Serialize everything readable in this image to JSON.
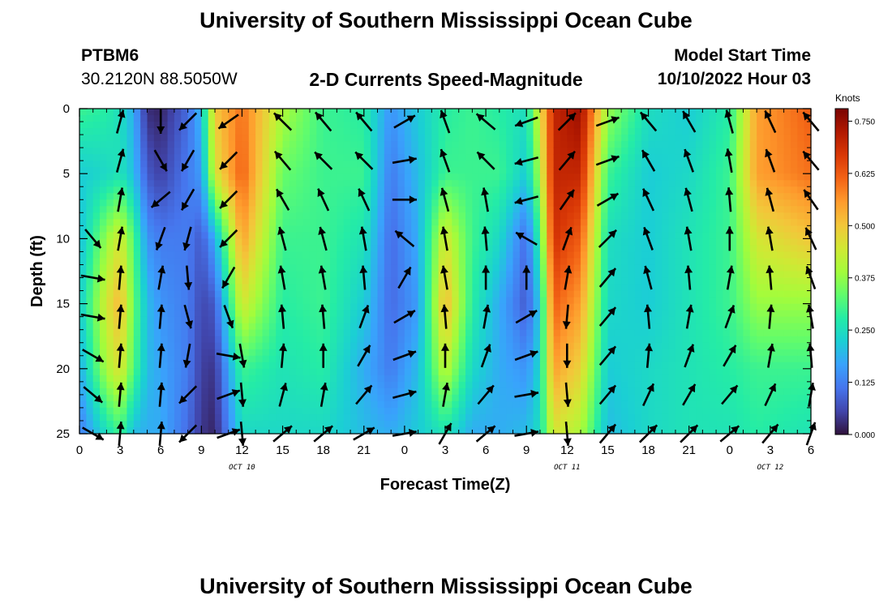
{
  "header": {
    "title": "University of Southern Mississippi Ocean Cube",
    "station": "PTBM6",
    "coords": "30.2120N  88.5050W",
    "model_label": "Model Start Time",
    "model_time": "10/10/2022 Hour 03"
  },
  "footer": {
    "title": "University of Southern Mississippi Ocean Cube"
  },
  "chart_data": {
    "type": "heatmap",
    "title": "2-D Currents Speed-Magnitude",
    "xlabel": "Forecast Time(Z)",
    "ylabel": "Depth (ft)",
    "x_unit": "hours since 2022-10-10 00Z",
    "x_ticks": [
      {
        "hour": 0,
        "label": "0"
      },
      {
        "hour": 3,
        "label": "3"
      },
      {
        "hour": 6,
        "label": "6"
      },
      {
        "hour": 9,
        "label": "9"
      },
      {
        "hour": 12,
        "label": "12"
      },
      {
        "hour": 15,
        "label": "15"
      },
      {
        "hour": 18,
        "label": "18"
      },
      {
        "hour": 21,
        "label": "21"
      },
      {
        "hour": 24,
        "label": "0"
      },
      {
        "hour": 27,
        "label": "3"
      },
      {
        "hour": 30,
        "label": "6"
      },
      {
        "hour": 33,
        "label": "9"
      },
      {
        "hour": 36,
        "label": "12"
      },
      {
        "hour": 39,
        "label": "15"
      },
      {
        "hour": 42,
        "label": "18"
      },
      {
        "hour": 45,
        "label": "21"
      },
      {
        "hour": 48,
        "label": "0"
      },
      {
        "hour": 51,
        "label": "3"
      },
      {
        "hour": 54,
        "label": "6"
      }
    ],
    "date_labels": [
      {
        "hour": 12,
        "label": "OCT 10"
      },
      {
        "hour": 36,
        "label": "OCT 11"
      },
      {
        "hour": 51,
        "label": "OCT 12"
      }
    ],
    "xlim": [
      0,
      54
    ],
    "y_ticks": [
      0,
      5,
      10,
      15,
      20,
      25
    ],
    "ylim": [
      0,
      25
    ],
    "y_inverted": true,
    "colorbar": {
      "title": "Knots",
      "ticks": [
        "0.000",
        "0.125",
        "0.250",
        "0.375",
        "0.500",
        "0.625",
        "0.750"
      ],
      "range": [
        0,
        0.78
      ],
      "colormap": [
        "#30123b",
        "#4145ab",
        "#4675ed",
        "#39a2fc",
        "#1bcfd4",
        "#24eca6",
        "#61fc6c",
        "#a4fc3b",
        "#d1e834",
        "#f3c63a",
        "#fe9b2d",
        "#f36315",
        "#d93806",
        "#b11901",
        "#7a0402"
      ]
    },
    "speed_profiles": [
      {
        "hour": 0,
        "depths": [
          0,
          5,
          10,
          15,
          20,
          25
        ],
        "speed": [
          0.3,
          0.22,
          0.2,
          0.22,
          0.18,
          0.12
        ]
      },
      {
        "hour": 2,
        "depths": [
          0,
          5,
          10,
          15,
          20,
          25
        ],
        "speed": [
          0.28,
          0.24,
          0.38,
          0.45,
          0.4,
          0.25
        ]
      },
      {
        "hour": 3,
        "depths": [
          0,
          5,
          10,
          15,
          20,
          25
        ],
        "speed": [
          0.25,
          0.26,
          0.45,
          0.52,
          0.46,
          0.3
        ]
      },
      {
        "hour": 4,
        "depths": [
          0,
          5,
          10,
          15,
          20,
          25
        ],
        "speed": [
          0.18,
          0.2,
          0.32,
          0.34,
          0.32,
          0.2
        ]
      },
      {
        "hour": 5,
        "depths": [
          0,
          5,
          10,
          15,
          20,
          25
        ],
        "speed": [
          0.03,
          0.08,
          0.15,
          0.2,
          0.2,
          0.18
        ]
      },
      {
        "hour": 6,
        "depths": [
          0,
          5,
          10,
          15,
          20,
          25
        ],
        "speed": [
          0.02,
          0.05,
          0.12,
          0.15,
          0.17,
          0.18
        ]
      },
      {
        "hour": 8,
        "depths": [
          0,
          5,
          10,
          15,
          20,
          25
        ],
        "speed": [
          0.1,
          0.12,
          0.12,
          0.12,
          0.12,
          0.1
        ]
      },
      {
        "hour": 9,
        "depths": [
          0,
          5,
          10,
          15,
          20,
          25
        ],
        "speed": [
          0.2,
          0.16,
          0.08,
          0.06,
          0.05,
          0.04
        ]
      },
      {
        "hour": 10,
        "depths": [
          0,
          5,
          10,
          15,
          20,
          25
        ],
        "speed": [
          0.5,
          0.45,
          0.18,
          0.08,
          0.04,
          0.02
        ]
      },
      {
        "hour": 12,
        "depths": [
          0,
          5,
          10,
          15,
          20,
          25
        ],
        "speed": [
          0.6,
          0.62,
          0.55,
          0.45,
          0.3,
          0.24
        ]
      },
      {
        "hour": 15,
        "depths": [
          0,
          5,
          10,
          15,
          20,
          25
        ],
        "speed": [
          0.4,
          0.34,
          0.3,
          0.28,
          0.26,
          0.24
        ]
      },
      {
        "hour": 18,
        "depths": [
          0,
          5,
          10,
          15,
          20,
          25
        ],
        "speed": [
          0.3,
          0.3,
          0.3,
          0.3,
          0.28,
          0.24
        ]
      },
      {
        "hour": 21,
        "depths": [
          0,
          5,
          10,
          15,
          20,
          25
        ],
        "speed": [
          0.28,
          0.3,
          0.26,
          0.22,
          0.18,
          0.2
        ]
      },
      {
        "hour": 23,
        "depths": [
          0,
          5,
          10,
          15,
          20,
          25
        ],
        "speed": [
          0.15,
          0.12,
          0.1,
          0.1,
          0.12,
          0.18
        ]
      },
      {
        "hour": 25,
        "depths": [
          0,
          5,
          10,
          15,
          20,
          25
        ],
        "speed": [
          0.22,
          0.2,
          0.18,
          0.16,
          0.2,
          0.22
        ]
      },
      {
        "hour": 27,
        "depths": [
          0,
          5,
          10,
          15,
          20,
          25
        ],
        "speed": [
          0.28,
          0.3,
          0.45,
          0.52,
          0.42,
          0.26
        ]
      },
      {
        "hour": 29,
        "depths": [
          0,
          5,
          10,
          15,
          20,
          25
        ],
        "speed": [
          0.3,
          0.3,
          0.3,
          0.28,
          0.24,
          0.18
        ]
      },
      {
        "hour": 31,
        "depths": [
          0,
          5,
          10,
          15,
          20,
          25
        ],
        "speed": [
          0.28,
          0.3,
          0.24,
          0.18,
          0.18,
          0.18
        ]
      },
      {
        "hour": 33,
        "depths": [
          0,
          5,
          10,
          15,
          20,
          25
        ],
        "speed": [
          0.25,
          0.22,
          0.1,
          0.08,
          0.15,
          0.2
        ]
      },
      {
        "hour": 34,
        "depths": [
          0,
          5,
          10,
          15,
          20,
          25
        ],
        "speed": [
          0.45,
          0.4,
          0.3,
          0.22,
          0.24,
          0.25
        ]
      },
      {
        "hour": 35,
        "depths": [
          0,
          5,
          10,
          15,
          20,
          25
        ],
        "speed": [
          0.7,
          0.7,
          0.68,
          0.62,
          0.55,
          0.45
        ]
      },
      {
        "hour": 37,
        "depths": [
          0,
          5,
          10,
          15,
          20,
          25
        ],
        "speed": [
          0.75,
          0.7,
          0.62,
          0.55,
          0.48,
          0.4
        ]
      },
      {
        "hour": 39,
        "depths": [
          0,
          5,
          10,
          15,
          20,
          25
        ],
        "speed": [
          0.38,
          0.3,
          0.25,
          0.24,
          0.22,
          0.2
        ]
      },
      {
        "hour": 42,
        "depths": [
          0,
          5,
          10,
          15,
          20,
          25
        ],
        "speed": [
          0.25,
          0.22,
          0.22,
          0.22,
          0.24,
          0.24
        ]
      },
      {
        "hour": 45,
        "depths": [
          0,
          5,
          10,
          15,
          20,
          25
        ],
        "speed": [
          0.22,
          0.24,
          0.26,
          0.26,
          0.26,
          0.26
        ]
      },
      {
        "hour": 48,
        "depths": [
          0,
          5,
          10,
          15,
          20,
          25
        ],
        "speed": [
          0.28,
          0.3,
          0.3,
          0.3,
          0.28,
          0.26
        ]
      },
      {
        "hour": 50,
        "depths": [
          0,
          5,
          10,
          15,
          20,
          25
        ],
        "speed": [
          0.55,
          0.55,
          0.45,
          0.38,
          0.3,
          0.28
        ]
      },
      {
        "hour": 54,
        "depths": [
          0,
          5,
          10,
          15,
          20,
          25
        ],
        "speed": [
          0.62,
          0.6,
          0.5,
          0.38,
          0.3,
          0.26
        ]
      }
    ],
    "vector_columns": [
      {
        "hour": 1,
        "dirs": [
          null,
          null,
          null,
          140,
          100,
          100,
          120,
          130,
          120
        ]
      },
      {
        "hour": 3,
        "dirs": [
          15,
          15,
          10,
          10,
          5,
          5,
          5,
          5,
          5
        ]
      },
      {
        "hour": 6,
        "dirs": [
          180,
          150,
          230,
          200,
          10,
          5,
          5,
          5,
          5
        ]
      },
      {
        "hour": 8,
        "dirs": [
          225,
          210,
          210,
          195,
          175,
          165,
          190,
          225,
          225
        ]
      },
      {
        "hour": 11,
        "dirs": [
          235,
          225,
          225,
          225,
          210,
          160,
          100,
          70,
          70
        ]
      },
      {
        "hour": 12,
        "dirs": [
          null,
          null,
          null,
          null,
          null,
          null,
          170,
          175,
          175
        ]
      },
      {
        "hour": 15,
        "dirs": [
          315,
          320,
          330,
          345,
          350,
          355,
          5,
          15,
          50
        ]
      },
      {
        "hour": 18,
        "dirs": [
          320,
          315,
          335,
          345,
          350,
          355,
          0,
          10,
          50
        ]
      },
      {
        "hour": 21,
        "dirs": [
          320,
          315,
          335,
          350,
          355,
          20,
          30,
          40,
          60
        ]
      },
      {
        "hour": 24,
        "dirs": [
          60,
          80,
          90,
          310,
          30,
          60,
          70,
          75,
          80
        ]
      },
      {
        "hour": 27,
        "dirs": [
          340,
          340,
          345,
          350,
          350,
          355,
          0,
          10,
          30
        ]
      },
      {
        "hour": 30,
        "dirs": [
          310,
          315,
          350,
          355,
          0,
          10,
          20,
          40,
          50
        ]
      },
      {
        "hour": 33,
        "dirs": [
          250,
          255,
          255,
          300,
          0,
          60,
          70,
          80,
          80
        ]
      },
      {
        "hour": 36,
        "dirs": [
          45,
          40,
          35,
          20,
          10,
          185,
          180,
          175,
          175
        ]
      },
      {
        "hour": 39,
        "dirs": [
          70,
          70,
          60,
          45,
          40,
          40,
          40,
          40,
          40
        ]
      },
      {
        "hour": 42,
        "dirs": [
          320,
          330,
          335,
          340,
          345,
          355,
          5,
          25,
          45
        ]
      },
      {
        "hour": 45,
        "dirs": [
          330,
          340,
          345,
          350,
          355,
          10,
          20,
          30,
          45
        ]
      },
      {
        "hour": 48,
        "dirs": [
          345,
          350,
          355,
          0,
          10,
          20,
          30,
          40,
          50
        ]
      },
      {
        "hour": 51,
        "dirs": [
          335,
          340,
          345,
          350,
          355,
          5,
          10,
          25,
          40
        ]
      },
      {
        "hour": 54,
        "dirs": [
          320,
          320,
          325,
          335,
          340,
          350,
          355,
          10,
          20
        ]
      }
    ]
  }
}
